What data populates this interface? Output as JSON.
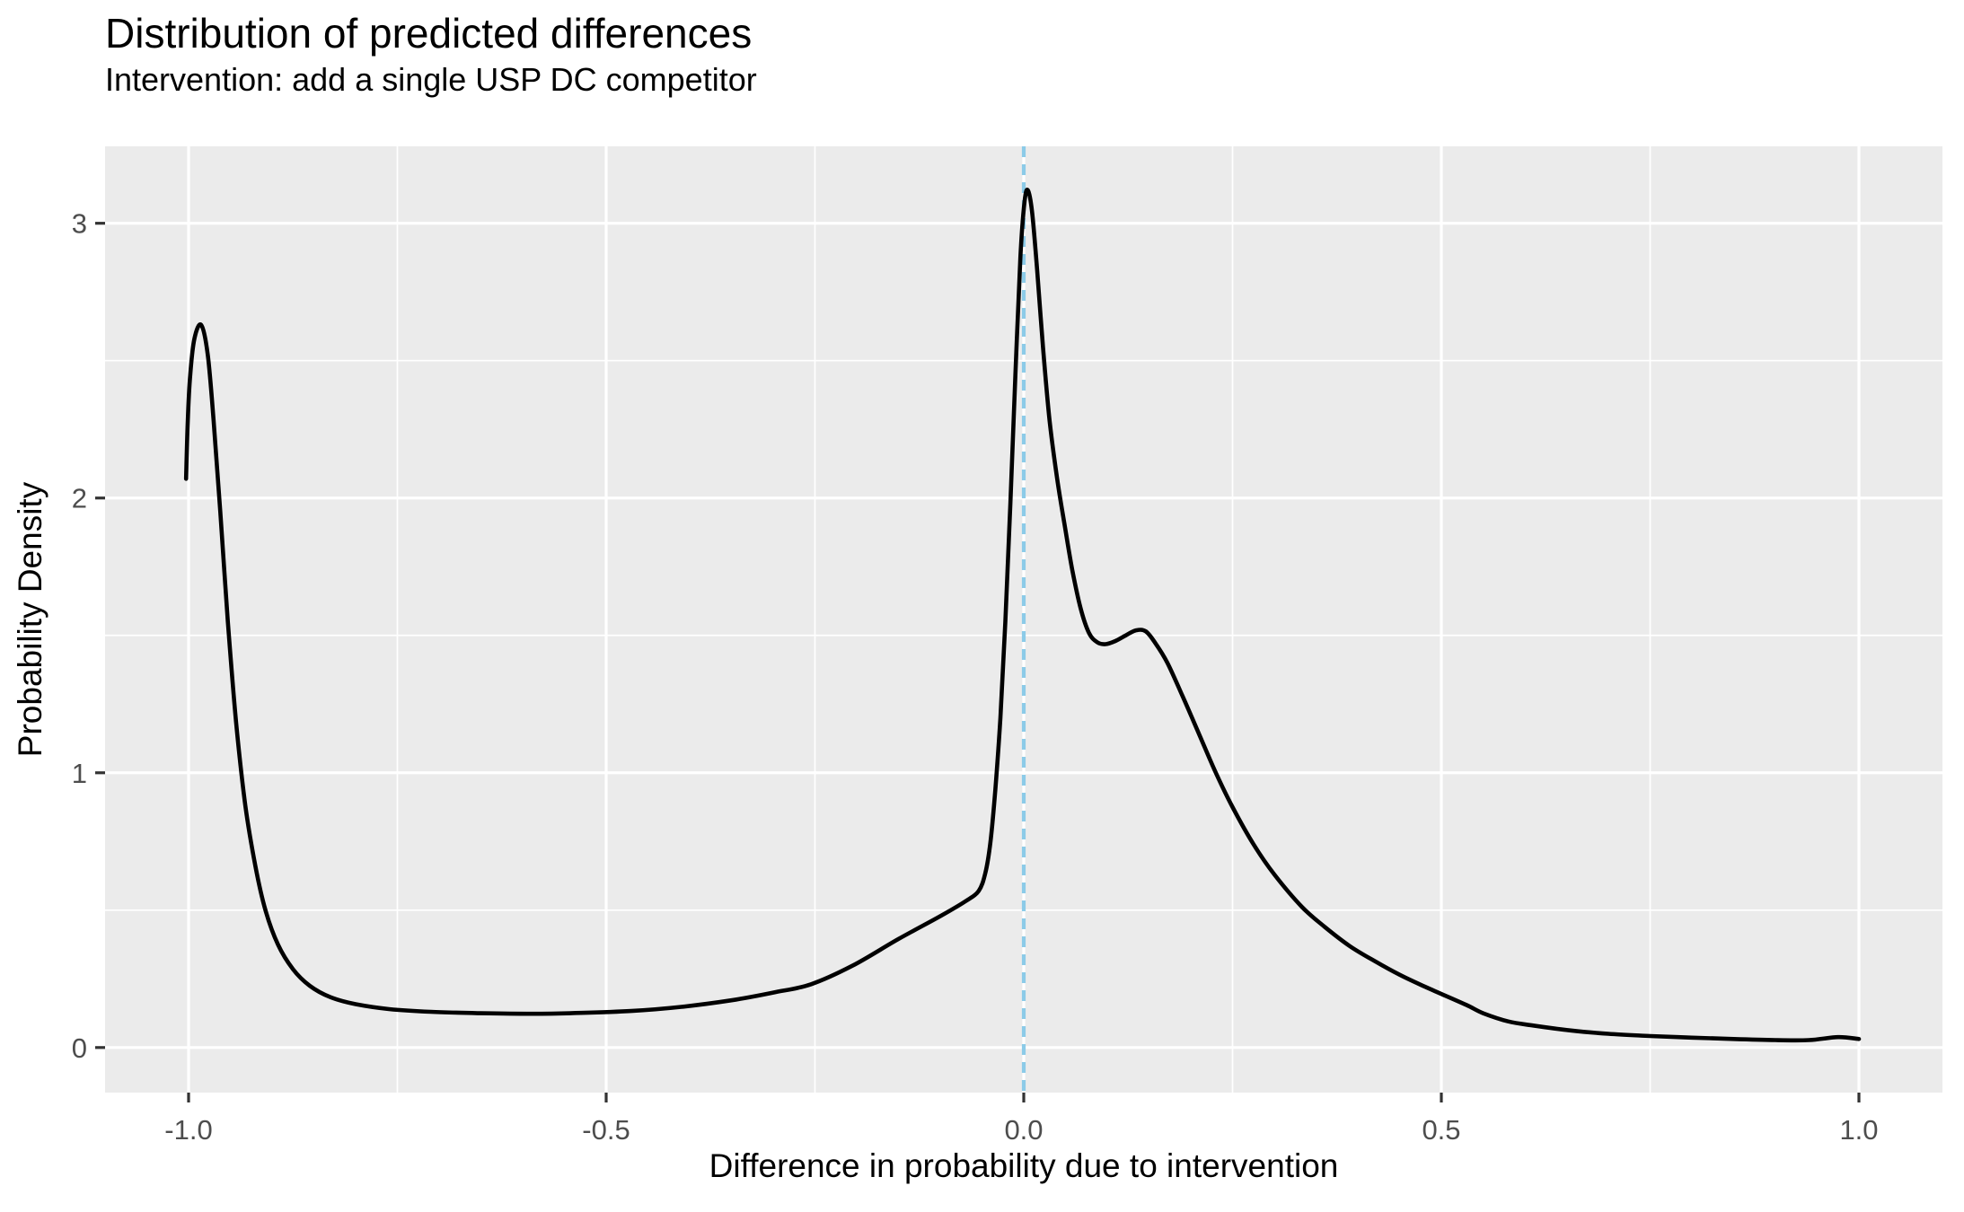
{
  "chart_data": {
    "type": "line",
    "title": "Distribution of predicted differences",
    "subtitle": "Intervention: add a single USP DC competitor",
    "xlabel": "Difference in probability due to intervention",
    "ylabel": "Probability Density",
    "xlim": [
      -1.1,
      1.1
    ],
    "ylim": [
      -0.164,
      3.28
    ],
    "grid": "on",
    "legend_position": "none",
    "x_axis": {
      "breaks": [
        -1.0,
        -0.5,
        0.0,
        0.5,
        1.0
      ],
      "labels": [
        "-1.0",
        "-0.5",
        "0.0",
        "0.5",
        "1.0"
      ],
      "minor_breaks": [
        -0.75,
        -0.25,
        0.25,
        0.75
      ]
    },
    "y_axis": {
      "breaks": [
        0,
        1,
        2,
        3
      ],
      "labels": [
        "0",
        "1",
        "2",
        "3"
      ],
      "minor_breaks": [
        0.5,
        1.5,
        2.5
      ]
    },
    "reference_line": {
      "x": 0.0,
      "style": "dashed",
      "color": "#8CCBE8"
    },
    "series": [
      {
        "name": "predicted-difference-density",
        "color": "#000000",
        "points": [
          [
            -1.003,
            2.07
          ],
          [
            -1.001,
            2.28
          ],
          [
            -0.998,
            2.45
          ],
          [
            -0.993,
            2.58
          ],
          [
            -0.985,
            2.63
          ],
          [
            -0.977,
            2.52
          ],
          [
            -0.97,
            2.28
          ],
          [
            -0.962,
            1.95
          ],
          [
            -0.953,
            1.55
          ],
          [
            -0.943,
            1.18
          ],
          [
            -0.932,
            0.88
          ],
          [
            -0.92,
            0.66
          ],
          [
            -0.908,
            0.5
          ],
          [
            -0.893,
            0.375
          ],
          [
            -0.875,
            0.285
          ],
          [
            -0.855,
            0.225
          ],
          [
            -0.83,
            0.183
          ],
          [
            -0.8,
            0.158
          ],
          [
            -0.76,
            0.14
          ],
          [
            -0.71,
            0.13
          ],
          [
            -0.65,
            0.125
          ],
          [
            -0.59,
            0.123
          ],
          [
            -0.53,
            0.126
          ],
          [
            -0.47,
            0.133
          ],
          [
            -0.41,
            0.148
          ],
          [
            -0.35,
            0.172
          ],
          [
            -0.3,
            0.2
          ],
          [
            -0.255,
            0.23
          ],
          [
            -0.205,
            0.298
          ],
          [
            -0.15,
            0.395
          ],
          [
            -0.1,
            0.478
          ],
          [
            -0.07,
            0.532
          ],
          [
            -0.054,
            0.57
          ],
          [
            -0.046,
            0.635
          ],
          [
            -0.04,
            0.745
          ],
          [
            -0.034,
            0.94
          ],
          [
            -0.028,
            1.2
          ],
          [
            -0.022,
            1.55
          ],
          [
            -0.016,
            1.98
          ],
          [
            -0.01,
            2.45
          ],
          [
            -0.004,
            2.88
          ],
          [
            0.001,
            3.08
          ],
          [
            0.005,
            3.12
          ],
          [
            0.01,
            3.04
          ],
          [
            0.016,
            2.83
          ],
          [
            0.023,
            2.55
          ],
          [
            0.031,
            2.28
          ],
          [
            0.04,
            2.07
          ],
          [
            0.049,
            1.9
          ],
          [
            0.058,
            1.74
          ],
          [
            0.068,
            1.6
          ],
          [
            0.078,
            1.51
          ],
          [
            0.088,
            1.475
          ],
          [
            0.098,
            1.468
          ],
          [
            0.11,
            1.48
          ],
          [
            0.122,
            1.5
          ],
          [
            0.134,
            1.518
          ],
          [
            0.146,
            1.515
          ],
          [
            0.158,
            1.47
          ],
          [
            0.172,
            1.4
          ],
          [
            0.19,
            1.28
          ],
          [
            0.21,
            1.14
          ],
          [
            0.23,
            1.0
          ],
          [
            0.25,
            0.875
          ],
          [
            0.275,
            0.74
          ],
          [
            0.3,
            0.63
          ],
          [
            0.333,
            0.512
          ],
          [
            0.36,
            0.44
          ],
          [
            0.39,
            0.37
          ],
          [
            0.42,
            0.315
          ],
          [
            0.45,
            0.265
          ],
          [
            0.48,
            0.222
          ],
          [
            0.5,
            0.195
          ],
          [
            0.53,
            0.155
          ],
          [
            0.55,
            0.125
          ],
          [
            0.58,
            0.095
          ],
          [
            0.61,
            0.08
          ],
          [
            0.655,
            0.062
          ],
          [
            0.7,
            0.05
          ],
          [
            0.75,
            0.042
          ],
          [
            0.8,
            0.036
          ],
          [
            0.85,
            0.031
          ],
          [
            0.9,
            0.027
          ],
          [
            0.94,
            0.027
          ],
          [
            0.975,
            0.038
          ],
          [
            1.0,
            0.031
          ]
        ]
      }
    ],
    "theme": {
      "panel_bg": "#EBEBEB",
      "grid_color": "#FFFFFF",
      "tick_mark_color": "#333333",
      "tick_label_color": "#4D4D4D",
      "curve_color": "#000000",
      "title_color": "#000000"
    }
  }
}
